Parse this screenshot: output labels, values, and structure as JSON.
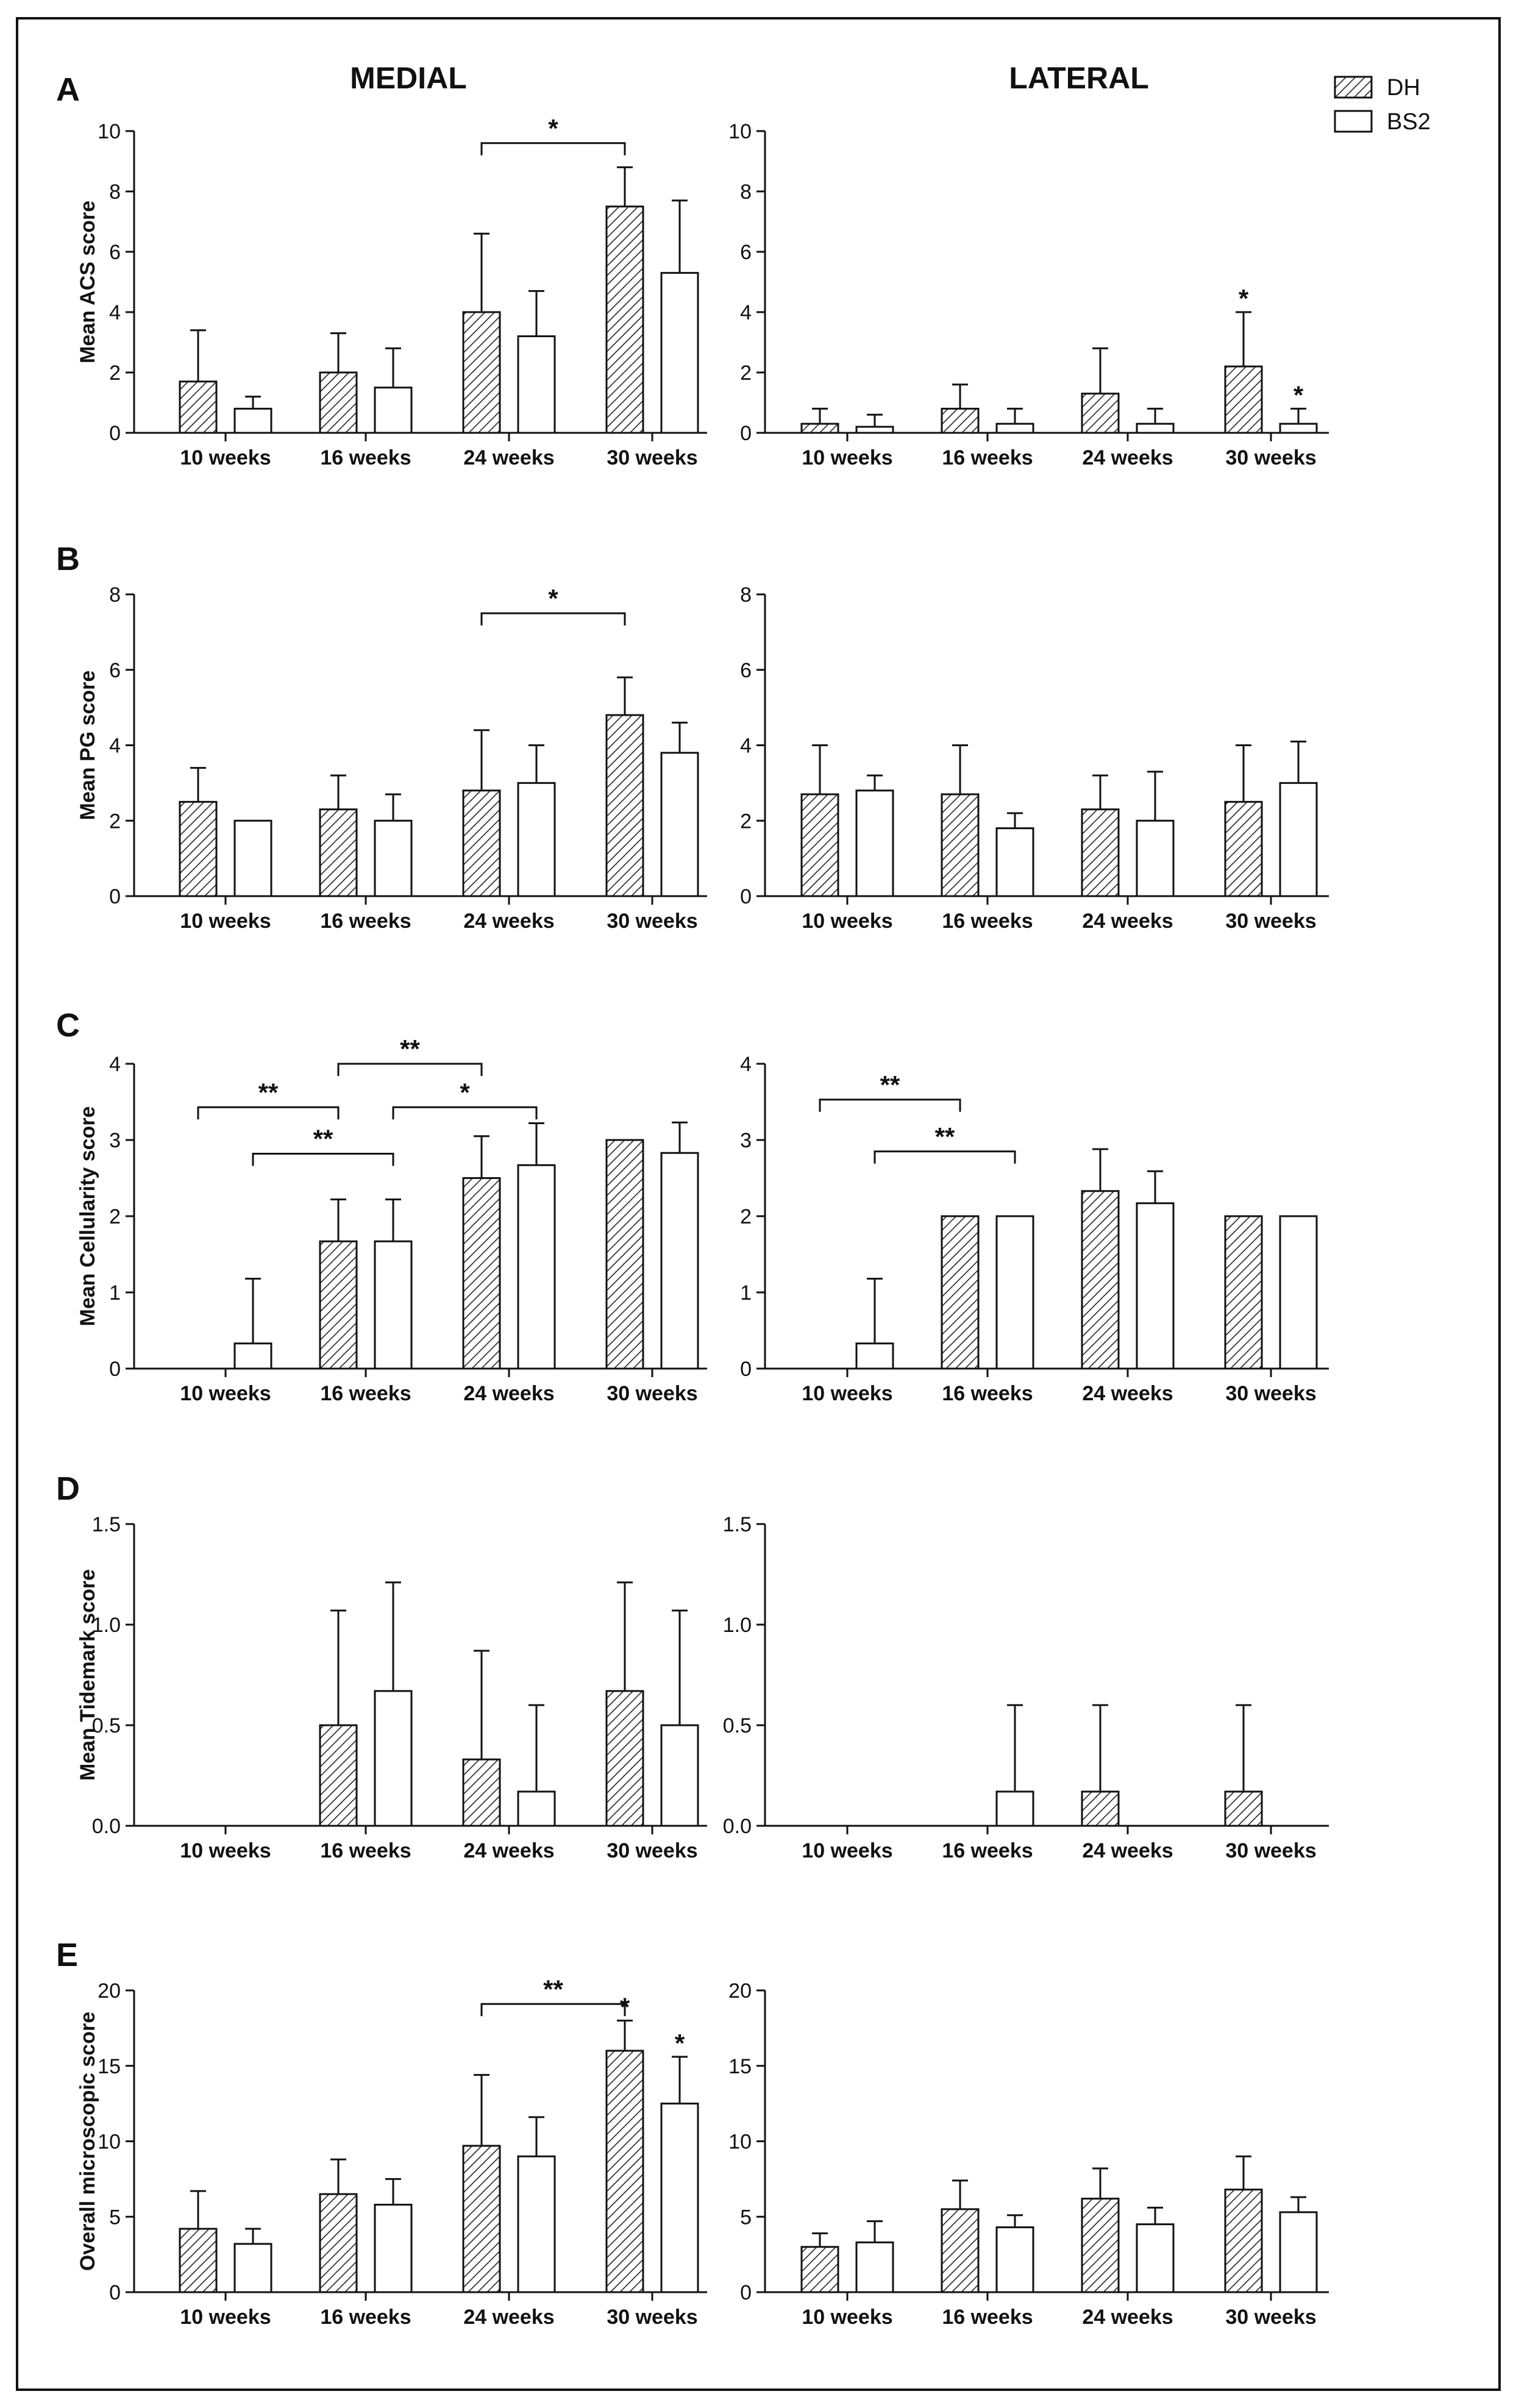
{
  "column_titles": [
    "MEDIAL",
    "LATERAL"
  ],
  "legend": [
    {
      "name": "DH",
      "pattern": "hatched"
    },
    {
      "name": "BS2",
      "pattern": "open"
    }
  ],
  "colors": {
    "bar_outline": "#111111",
    "background": "#ffffff"
  },
  "chart_data": [
    {
      "type": "bar",
      "panel": "A",
      "side": "MEDIAL",
      "ylabel": "Mean ACS score",
      "categories": [
        "10 weeks",
        "16 weeks",
        "24 weeks",
        "30 weeks"
      ],
      "ylim": [
        0,
        10
      ],
      "yticks": [
        "0",
        "2",
        "4",
        "6",
        "8",
        "10"
      ],
      "series": [
        {
          "name": "DH",
          "values": [
            1.7,
            2.0,
            4.0,
            7.5
          ],
          "errors": [
            1.7,
            1.3,
            2.6,
            1.3
          ]
        },
        {
          "name": "BS2",
          "values": [
            0.8,
            1.5,
            3.2,
            5.3
          ],
          "errors": [
            0.4,
            1.3,
            1.5,
            2.4
          ]
        }
      ],
      "brackets": [
        {
          "from": [
            2,
            0
          ],
          "to": [
            3,
            0
          ],
          "y": 9.6,
          "label": "*"
        }
      ],
      "stars": []
    },
    {
      "type": "bar",
      "panel": "",
      "side": "LATERAL",
      "ylabel": "",
      "categories": [
        "10 weeks",
        "16 weeks",
        "24 weeks",
        "30 weeks"
      ],
      "ylim": [
        0,
        10
      ],
      "yticks": [
        "0",
        "2",
        "4",
        "6",
        "8",
        "10"
      ],
      "series": [
        {
          "name": "DH",
          "values": [
            0.3,
            0.8,
            1.3,
            2.2
          ],
          "errors": [
            0.5,
            0.8,
            1.5,
            1.8
          ]
        },
        {
          "name": "BS2",
          "values": [
            0.2,
            0.3,
            0.3,
            0.3
          ],
          "errors": [
            0.4,
            0.5,
            0.5,
            0.5
          ]
        }
      ],
      "brackets": [],
      "stars": [
        {
          "cat": 3,
          "series": 0,
          "label": "*"
        },
        {
          "cat": 3,
          "series": 1,
          "label": "*"
        }
      ]
    },
    {
      "type": "bar",
      "panel": "B",
      "side": "MEDIAL",
      "ylabel": "Mean PG score",
      "categories": [
        "10 weeks",
        "16 weeks",
        "24 weeks",
        "30 weeks"
      ],
      "ylim": [
        0,
        8
      ],
      "yticks": [
        "0",
        "2",
        "4",
        "6",
        "8"
      ],
      "series": [
        {
          "name": "DH",
          "values": [
            2.5,
            2.3,
            2.8,
            4.8
          ],
          "errors": [
            0.9,
            0.9,
            1.6,
            1.0
          ]
        },
        {
          "name": "BS2",
          "values": [
            2.0,
            2.0,
            3.0,
            3.8
          ],
          "errors": [
            0,
            0.7,
            1.0,
            0.8
          ]
        }
      ],
      "brackets": [
        {
          "from": [
            2,
            0
          ],
          "to": [
            3,
            0
          ],
          "y": 7.5,
          "label": "*"
        }
      ],
      "stars": []
    },
    {
      "type": "bar",
      "panel": "",
      "side": "LATERAL",
      "ylabel": "",
      "categories": [
        "10 weeks",
        "16 weeks",
        "24 weeks",
        "30 weeks"
      ],
      "ylim": [
        0,
        8
      ],
      "yticks": [
        "0",
        "2",
        "4",
        "6",
        "8"
      ],
      "series": [
        {
          "name": "DH",
          "values": [
            2.7,
            2.7,
            2.3,
            2.5
          ],
          "errors": [
            1.3,
            1.3,
            0.9,
            1.5
          ]
        },
        {
          "name": "BS2",
          "values": [
            2.8,
            1.8,
            2.0,
            3.0
          ],
          "errors": [
            0.4,
            0.4,
            1.3,
            1.1
          ]
        }
      ],
      "brackets": [],
      "stars": []
    },
    {
      "type": "bar",
      "panel": "C",
      "side": "MEDIAL",
      "ylabel": "Mean Cellularity score",
      "categories": [
        "10 weeks",
        "16 weeks",
        "24 weeks",
        "30 weeks"
      ],
      "ylim": [
        0,
        4
      ],
      "yticks": [
        "0",
        "1",
        "2",
        "3",
        "4"
      ],
      "series": [
        {
          "name": "DH",
          "values": [
            0,
            1.67,
            2.5,
            3.0
          ],
          "errors": [
            0,
            0.55,
            0.55,
            0
          ]
        },
        {
          "name": "BS2",
          "values": [
            0.33,
            1.67,
            2.67,
            2.83
          ],
          "errors": [
            0.85,
            0.55,
            0.55,
            0.4
          ]
        }
      ],
      "brackets": [
        {
          "from": [
            0,
            0
          ],
          "to": [
            1,
            0
          ],
          "y": 3.43,
          "label": "**"
        },
        {
          "from": [
            1,
            0
          ],
          "to": [
            2,
            0
          ],
          "y": 4.0,
          "label": "**"
        },
        {
          "from": [
            0,
            1
          ],
          "to": [
            1,
            1
          ],
          "y": 2.82,
          "label": "**"
        },
        {
          "from": [
            1,
            1
          ],
          "to": [
            2,
            1
          ],
          "y": 3.43,
          "label": "*"
        }
      ],
      "stars": []
    },
    {
      "type": "bar",
      "panel": "",
      "side": "LATERAL",
      "ylabel": "",
      "categories": [
        "10 weeks",
        "16 weeks",
        "24 weeks",
        "30 weeks"
      ],
      "ylim": [
        0,
        4
      ],
      "yticks": [
        "0",
        "1",
        "2",
        "3",
        "4"
      ],
      "series": [
        {
          "name": "DH",
          "values": [
            0,
            2.0,
            2.33,
            2.0
          ],
          "errors": [
            0,
            0,
            0.55,
            0
          ]
        },
        {
          "name": "BS2",
          "values": [
            0.33,
            2.0,
            2.17,
            2.0
          ],
          "errors": [
            0.85,
            0,
            0.42,
            0
          ]
        }
      ],
      "brackets": [
        {
          "from": [
            0,
            0
          ],
          "to": [
            1,
            0
          ],
          "y": 3.53,
          "label": "**"
        },
        {
          "from": [
            0,
            1
          ],
          "to": [
            1,
            1
          ],
          "y": 2.85,
          "label": "**"
        }
      ],
      "stars": []
    },
    {
      "type": "bar",
      "panel": "D",
      "side": "MEDIAL",
      "ylabel": "Mean Tidemark score",
      "categories": [
        "10 weeks",
        "16 weeks",
        "24 weeks",
        "30 weeks"
      ],
      "ylim": [
        0,
        1.5
      ],
      "yticks": [
        "0.0",
        "0.5",
        "1.0",
        "1.5"
      ],
      "series": [
        {
          "name": "DH",
          "values": [
            0,
            0.5,
            0.33,
            0.67
          ],
          "errors": [
            0,
            0.57,
            0.54,
            0.54
          ]
        },
        {
          "name": "BS2",
          "values": [
            0,
            0.67,
            0.17,
            0.5
          ],
          "errors": [
            0,
            0.54,
            0.43,
            0.57
          ]
        }
      ],
      "brackets": [],
      "stars": []
    },
    {
      "type": "bar",
      "panel": "",
      "side": "LATERAL",
      "ylabel": "",
      "categories": [
        "10 weeks",
        "16 weeks",
        "24 weeks",
        "30 weeks"
      ],
      "ylim": [
        0,
        1.5
      ],
      "yticks": [
        "0.0",
        "0.5",
        "1.0",
        "1.5"
      ],
      "series": [
        {
          "name": "DH",
          "values": [
            0,
            0,
            0.17,
            0.17
          ],
          "errors": [
            0,
            0,
            0.43,
            0.43
          ]
        },
        {
          "name": "BS2",
          "values": [
            0,
            0.17,
            0,
            0
          ],
          "errors": [
            0,
            0.43,
            0,
            0
          ]
        }
      ],
      "brackets": [],
      "stars": []
    },
    {
      "type": "bar",
      "panel": "E",
      "side": "MEDIAL",
      "ylabel": "Overall microscopic score",
      "categories": [
        "10 weeks",
        "16 weeks",
        "24 weeks",
        "30 weeks"
      ],
      "ylim": [
        0,
        20
      ],
      "yticks": [
        "0",
        "5",
        "10",
        "15",
        "20"
      ],
      "series": [
        {
          "name": "DH",
          "values": [
            4.2,
            6.5,
            9.7,
            16.0
          ],
          "errors": [
            2.5,
            2.3,
            4.7,
            2.0
          ]
        },
        {
          "name": "BS2",
          "values": [
            3.2,
            5.8,
            9.0,
            12.5
          ],
          "errors": [
            1.0,
            1.7,
            2.6,
            3.1
          ]
        }
      ],
      "brackets": [
        {
          "from": [
            2,
            0
          ],
          "to": [
            3,
            0
          ],
          "y": 19.1,
          "label": "**"
        }
      ],
      "stars": [
        {
          "cat": 3,
          "series": 0,
          "label": "*"
        },
        {
          "cat": 3,
          "series": 1,
          "label": "*"
        }
      ]
    },
    {
      "type": "bar",
      "panel": "",
      "side": "LATERAL",
      "ylabel": "",
      "categories": [
        "10 weeks",
        "16 weeks",
        "24 weeks",
        "30 weeks"
      ],
      "ylim": [
        0,
        20
      ],
      "yticks": [
        "0",
        "5",
        "10",
        "15",
        "20"
      ],
      "series": [
        {
          "name": "DH",
          "values": [
            3.0,
            5.5,
            6.2,
            6.8
          ],
          "errors": [
            0.9,
            1.9,
            2.0,
            2.2
          ]
        },
        {
          "name": "BS2",
          "values": [
            3.3,
            4.3,
            4.5,
            5.3
          ],
          "errors": [
            1.4,
            0.8,
            1.1,
            1.0
          ]
        }
      ],
      "brackets": [],
      "stars": []
    }
  ]
}
